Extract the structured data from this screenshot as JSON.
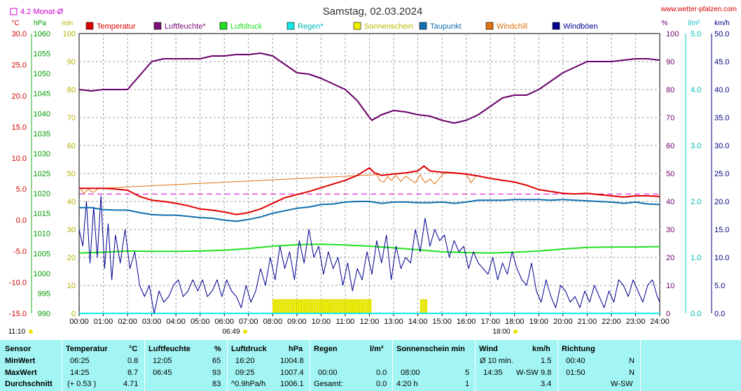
{
  "chart_data": {
    "type": "line",
    "title": "Samstag, 02.03.2024",
    "site": "www.wetter-pfalzen.com",
    "month_avg_label": "4.2 Monat-Ø",
    "axes_units": {
      "temp": "°C",
      "pressure": "hPa",
      "min": "min",
      "humidity": "%",
      "rain": "l/m²",
      "wind": "km/h"
    },
    "axes": {
      "temp": {
        "ticks": [
          "30.0",
          "25.0",
          "20.0",
          "15.0",
          "10.0",
          "5.0",
          "0.0",
          "-5.0",
          "-10.0",
          "-15.0"
        ],
        "range": [
          -15,
          30
        ],
        "color": "#d80000"
      },
      "pressure": {
        "ticks": [
          "1060",
          "1055",
          "1050",
          "1045",
          "1040",
          "1035",
          "1030",
          "1025",
          "1020",
          "1015",
          "1010",
          "1005",
          "1000",
          "995",
          "990"
        ],
        "range": [
          990,
          1060
        ],
        "color": "#009a00"
      },
      "min": {
        "ticks": [
          "100",
          "90",
          "80",
          "70",
          "60",
          "50",
          "40",
          "30",
          "20",
          "10",
          "0"
        ],
        "range": [
          0,
          100
        ],
        "color": "#c8c800"
      },
      "humidity": {
        "ticks": [
          "100",
          "90",
          "80",
          "70",
          "60",
          "50",
          "40",
          "30",
          "20",
          "10",
          "0"
        ],
        "range": [
          0,
          100
        ],
        "color": "#6a006a"
      },
      "rain": {
        "ticks": [
          "5.0",
          "4.0",
          "3.0",
          "2.0",
          "1.0",
          "0.0"
        ],
        "range": [
          0,
          5
        ],
        "color": "#00c8c8"
      },
      "wind": {
        "ticks": [
          "50.0",
          "45.0",
          "40.0",
          "35.0",
          "30.0",
          "25.0",
          "20.0",
          "15.0",
          "10.0",
          "5.0",
          "0.0"
        ],
        "range": [
          0,
          50
        ],
        "color": "#000080"
      }
    },
    "x_ticks": [
      "00:00",
      "01:00",
      "02:00",
      "03:00",
      "04:00",
      "05:00",
      "06:00",
      "07:00",
      "08:00",
      "09:00",
      "10:00",
      "11:00",
      "12:00",
      "13:00",
      "14:00",
      "15:00",
      "16:00",
      "17:00",
      "18:00",
      "19:00",
      "20:00",
      "21:00",
      "22:00",
      "23:00",
      "24:00"
    ],
    "sun_events": {
      "sunrise_label": "06:49",
      "sunset_label": "18:00",
      "moon_label": "11:10"
    },
    "legend": [
      {
        "name": "Temperatur",
        "color": "#e00000"
      },
      {
        "name": "Luftfeuchte*",
        "color": "#7a107a"
      },
      {
        "name": "Luftdruck",
        "color": "#20e020"
      },
      {
        "name": "Regen*",
        "color": "#10e8e8"
      },
      {
        "name": "Sonnenschein",
        "color": "#f0f000"
      },
      {
        "name": "Taupunkt",
        "color": "#1070b0"
      },
      {
        "name": "Windchill",
        "color": "#e07010"
      },
      {
        "name": "Windböen",
        "color": "#000090"
      }
    ],
    "month_avg_temp": 4.2,
    "series": [
      {
        "name": "Temperatur",
        "axis": "temp",
        "x": [
          0,
          0.5,
          1,
          1.5,
          2,
          2.5,
          3,
          3.5,
          4,
          4.5,
          5,
          5.5,
          6,
          6.5,
          7,
          7.5,
          8,
          8.5,
          9,
          9.5,
          10,
          10.5,
          11,
          11.5,
          12,
          12.2,
          12.5,
          13,
          13.5,
          14,
          14.25,
          14.5,
          15,
          15.5,
          16,
          16.5,
          17,
          17.5,
          18,
          18.5,
          19,
          19.5,
          20,
          20.5,
          21,
          21.5,
          22,
          22.5,
          23,
          23.5,
          24
        ],
        "y": [
          5.1,
          5.1,
          5.1,
          5.0,
          4.8,
          3.8,
          3.2,
          3.0,
          2.7,
          2.3,
          1.8,
          1.6,
          1.3,
          0.9,
          1.2,
          1.8,
          2.7,
          3.6,
          4.1,
          4.6,
          5.2,
          5.8,
          6.4,
          7.2,
          8.4,
          7.6,
          7.2,
          7.4,
          7.6,
          7.9,
          8.7,
          7.9,
          7.7,
          7.6,
          7.4,
          7.1,
          6.7,
          6.4,
          6.1,
          5.6,
          4.9,
          4.6,
          4.3,
          4.2,
          4.3,
          4.1,
          3.9,
          3.7,
          3.9,
          3.9,
          3.8
        ]
      },
      {
        "name": "Luftfeuchte*",
        "axis": "humidity",
        "x": [
          0,
          0.5,
          1,
          1.5,
          2,
          2.5,
          3,
          3.5,
          4,
          4.5,
          5,
          5.5,
          6,
          6.5,
          7,
          7.5,
          8,
          8.5,
          9,
          9.5,
          10,
          10.5,
          11,
          11.5,
          12,
          12.1,
          12.5,
          13,
          13.5,
          14,
          14.5,
          15,
          15.5,
          16,
          16.5,
          17,
          17.5,
          18,
          18.5,
          19,
          19.5,
          20,
          20.5,
          21,
          21.5,
          22,
          22.5,
          23,
          23.5,
          24
        ],
        "y": [
          80,
          79.5,
          80,
          80,
          80,
          85,
          90,
          91,
          91,
          91,
          91,
          92,
          92,
          92.5,
          92.5,
          93,
          92,
          89,
          86,
          85.5,
          84,
          82,
          80,
          76,
          70,
          69,
          71,
          72.5,
          72,
          71,
          70.5,
          69,
          68,
          69,
          71,
          74,
          77,
          78,
          78,
          80,
          83,
          86,
          88,
          90,
          90,
          90,
          90.5,
          91,
          91,
          90.5
        ]
      },
      {
        "name": "Luftdruck",
        "axis": "pressure",
        "x": [
          0,
          1,
          2,
          3,
          4,
          5,
          6,
          7,
          8,
          9,
          10,
          11,
          12,
          13,
          14,
          15,
          16,
          17,
          18,
          19,
          20,
          21,
          22,
          23,
          24
        ],
        "y": [
          1005.1,
          1005.3,
          1005.6,
          1005.5,
          1005.5,
          1005.6,
          1005.8,
          1006.2,
          1006.8,
          1007.2,
          1007.3,
          1007.1,
          1006.8,
          1006.4,
          1005.9,
          1005.4,
          1005.2,
          1005.1,
          1005.3,
          1005.6,
          1006.1,
          1006.5,
          1006.6,
          1006.6,
          1006.7
        ]
      },
      {
        "name": "Regen*",
        "axis": "rain",
        "x": [
          0,
          24
        ],
        "y": [
          0,
          0
        ]
      },
      {
        "name": "Taupunkt",
        "axis": "temp",
        "x": [
          0,
          0.5,
          1,
          1.5,
          2,
          2.5,
          3,
          3.5,
          4,
          4.5,
          5,
          5.5,
          6,
          6.5,
          7,
          7.5,
          8,
          8.5,
          9,
          9.5,
          10,
          10.5,
          11,
          11.5,
          12,
          12.5,
          13,
          13.5,
          14,
          14.5,
          15,
          15.5,
          16,
          16.5,
          17,
          17.5,
          18,
          18.5,
          19,
          19.5,
          20,
          20.5,
          21,
          21.5,
          22,
          22.5,
          23,
          23.5,
          24
        ],
        "y": [
          2.0,
          2.0,
          1.7,
          1.6,
          1.6,
          1.2,
          0.9,
          0.8,
          0.8,
          0.6,
          0.4,
          0.3,
          0.0,
          -0.2,
          0.1,
          0.5,
          1.1,
          1.5,
          1.9,
          2.1,
          2.5,
          2.6,
          2.9,
          3.0,
          3.0,
          2.7,
          2.9,
          2.9,
          2.8,
          2.8,
          2.9,
          2.7,
          2.9,
          3.2,
          3.2,
          3.2,
          3.3,
          3.3,
          3.3,
          3.2,
          3.3,
          3.2,
          3.1,
          3.0,
          2.9,
          2.7,
          2.9,
          2.6,
          2.5
        ]
      },
      {
        "name": "Windchill",
        "axis": "temp",
        "x": [
          0.05,
          0.2,
          0.4,
          0.5,
          0.6,
          0.8,
          12.3,
          12.45,
          12.6,
          12.75,
          12.9,
          13.1,
          13.3,
          13.5,
          13.7,
          13.9,
          14.1,
          14.3,
          14.5,
          14.7,
          14.9,
          15.1,
          16.0,
          16.2,
          16.4
        ],
        "y": [
          5.1,
          4.3,
          5.0,
          4.6,
          4.5,
          5.1,
          7.3,
          6.3,
          6.1,
          7.0,
          6.4,
          7.2,
          6.2,
          7.1,
          6.5,
          6.0,
          7.3,
          6.0,
          6.6,
          5.8,
          6.8,
          7.6,
          7.4,
          6.0,
          7.1
        ]
      },
      {
        "name": "Windböen",
        "axis": "wind",
        "x": [
          0,
          0.15,
          0.3,
          0.45,
          0.6,
          0.75,
          0.9,
          1.05,
          1.2,
          1.35,
          1.5,
          1.7,
          1.9,
          2.1,
          2.3,
          2.5,
          2.7,
          2.9,
          3.1,
          3.3,
          3.5,
          3.7,
          3.9,
          4.1,
          4.3,
          4.5,
          4.7,
          4.9,
          5.1,
          5.3,
          5.5,
          5.7,
          5.9,
          6.1,
          6.3,
          6.5,
          6.7,
          6.9,
          7.1,
          7.3,
          7.5,
          7.7,
          7.9,
          8.1,
          8.3,
          8.5,
          8.7,
          8.9,
          9.1,
          9.3,
          9.5,
          9.7,
          9.9,
          10.1,
          10.3,
          10.5,
          10.7,
          10.9,
          11.1,
          11.3,
          11.5,
          11.7,
          11.9,
          12.1,
          12.3,
          12.5,
          12.7,
          12.9,
          13.1,
          13.3,
          13.5,
          13.7,
          13.9,
          14.1,
          14.3,
          14.5,
          14.7,
          14.9,
          15.1,
          15.3,
          15.5,
          15.7,
          15.9,
          16.1,
          16.3,
          16.5,
          16.7,
          16.9,
          17.1,
          17.3,
          17.5,
          17.7,
          17.9,
          18.1,
          18.3,
          18.5,
          18.7,
          18.9,
          19.1,
          19.3,
          19.5,
          19.7,
          19.9,
          20.1,
          20.3,
          20.5,
          20.7,
          20.9,
          21.1,
          21.3,
          21.5,
          21.7,
          21.9,
          22.1,
          22.3,
          22.5,
          22.7,
          22.9,
          23.1,
          23.3,
          23.5,
          23.7,
          23.9,
          24
        ],
        "y": [
          15,
          12,
          20,
          9,
          19,
          10,
          21,
          8,
          16,
          6,
          14,
          9,
          15,
          8,
          11,
          5,
          3,
          5,
          0,
          4,
          2,
          3,
          5,
          6,
          3,
          4,
          6,
          4,
          6,
          3,
          4,
          6,
          3,
          6,
          4,
          3,
          1,
          5,
          2,
          4,
          8,
          5,
          10,
          6,
          12,
          8,
          11,
          6,
          13,
          9,
          15,
          10,
          12,
          7,
          11,
          8,
          10,
          5,
          9,
          4,
          8,
          6,
          11,
          7,
          13,
          9,
          14,
          6,
          12,
          8,
          10,
          9,
          15,
          11,
          17,
          12,
          15,
          13,
          14,
          10,
          13,
          11,
          12,
          8,
          11,
          9,
          8,
          7,
          10,
          6,
          9,
          7,
          11,
          8,
          6,
          5,
          9,
          4,
          2,
          6,
          3,
          1,
          5,
          4,
          2,
          3,
          1,
          4,
          2,
          5,
          3,
          1,
          4,
          2,
          6,
          5,
          3,
          6,
          4,
          2,
          5,
          6,
          3,
          2
        ]
      }
    ],
    "sunshine_bars": {
      "axis": "min",
      "x": [
        8.0,
        8.1,
        8.2,
        8.3,
        8.4,
        8.5,
        8.6,
        8.7,
        8.8,
        8.9,
        9.0,
        9.1,
        9.2,
        9.3,
        9.4,
        9.5,
        9.6,
        9.7,
        9.8,
        9.9,
        10.0,
        10.1,
        10.2,
        10.3,
        10.4,
        10.5,
        10.6,
        10.7,
        10.8,
        10.9,
        11.0,
        11.1,
        11.2,
        11.3,
        11.4,
        11.5,
        11.6,
        11.7,
        11.8,
        11.9,
        12.0,
        14.1,
        14.2,
        14.3
      ],
      "y": [
        5,
        5,
        5,
        5,
        5,
        5,
        5,
        5,
        5,
        5,
        5,
        5,
        5,
        5,
        5,
        5,
        5,
        5,
        5,
        5,
        5,
        5,
        5,
        5,
        5,
        5,
        5,
        5,
        5,
        5,
        5,
        5,
        5,
        5,
        5,
        5,
        5,
        5,
        5,
        5,
        5,
        5,
        5,
        5
      ]
    }
  },
  "table": {
    "headers": [
      {
        "label": "Sensor"
      },
      {
        "label": "Temperatur",
        "unit": "°C"
      },
      {
        "label": "Luftfeuchte",
        "unit": "%"
      },
      {
        "label": "Luftdruck",
        "unit": "hPa"
      },
      {
        "label": "Regen",
        "unit": "l/m²"
      },
      {
        "label": "Sonnenschein min"
      },
      {
        "label": "Wind",
        "unit": "km/h"
      },
      {
        "label": "Richtung"
      }
    ],
    "rows": [
      {
        "label": "MinWert",
        "temp_time": "06:25",
        "temp_val": "0.8",
        "hum_time": "12:05",
        "hum_val": "65",
        "pres_time": "16:20",
        "pres_val": "1004.8",
        "rain_time": "",
        "rain_val": "",
        "sun_time": "",
        "sun_val": "",
        "wind_time": "Ø 10 min.",
        "wind_dir": "",
        "wind_val": "1.5",
        "dir_time": "00:40",
        "dir_val": "N"
      },
      {
        "label": "MaxWert",
        "temp_time": "14:25",
        "temp_val": "8.7",
        "hum_time": "06:45",
        "hum_val": "93",
        "pres_time": "09:25",
        "pres_val": "1007.4",
        "rain_time": "00:00",
        "rain_val": "0.0",
        "sun_time": "08:00",
        "sun_val": "5",
        "wind_time": "14:35",
        "wind_dir": "W-SW",
        "wind_val": "9.8",
        "dir_time": "01:50",
        "dir_val": "N"
      },
      {
        "label": "Durchschnitt",
        "temp_time": "(+ 0.53 )",
        "temp_val": "4.71",
        "hum_time": "",
        "hum_val": "83",
        "pres_time": "^0.9hPa/h",
        "pres_val": "1006.1",
        "rain_time": "Gesamt:",
        "rain_val": "0.0",
        "sun_time": "4:20 h",
        "sun_val": "1",
        "wind_time": "",
        "wind_dir": "",
        "wind_val": "3.4",
        "dir_time": "",
        "dir_val": "W-SW"
      }
    ]
  }
}
